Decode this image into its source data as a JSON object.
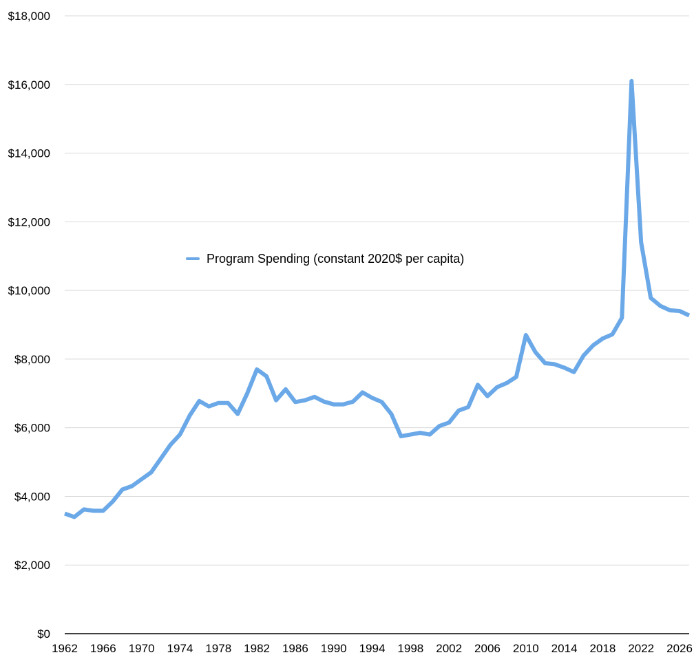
{
  "chart_data": {
    "type": "line",
    "title": "",
    "xlabel": "",
    "ylabel": "",
    "ylim": [
      0,
      18000
    ],
    "xlim": [
      1962,
      2027
    ],
    "yticks": [
      0,
      2000,
      4000,
      6000,
      8000,
      10000,
      12000,
      14000,
      16000,
      18000
    ],
    "ytick_labels": [
      "$0",
      "$2,000",
      "$4,000",
      "$6,000",
      "$8,000",
      "$10,000",
      "$12,000",
      "$14,000",
      "$16,000",
      "$18,000"
    ],
    "xticks": [
      1962,
      1966,
      1970,
      1974,
      1978,
      1982,
      1986,
      1990,
      1994,
      1998,
      2002,
      2006,
      2010,
      2014,
      2018,
      2022,
      2026
    ],
    "xtick_labels": [
      "1962",
      "1966",
      "1970",
      "1974",
      "1978",
      "1982",
      "1986",
      "1990",
      "1994",
      "1998",
      "2002",
      "2006",
      "2010",
      "2014",
      "2018",
      "2022",
      "2026"
    ],
    "grid": true,
    "legend": "center-left",
    "colors": {
      "series": "#6aa8e8",
      "grid": "#d9d9d9",
      "axis": "#000000"
    },
    "series": [
      {
        "name": "Program Spending (constant 2020$ per capita)",
        "x": [
          1962,
          1963,
          1964,
          1965,
          1966,
          1967,
          1968,
          1969,
          1970,
          1971,
          1972,
          1973,
          1974,
          1975,
          1976,
          1977,
          1978,
          1979,
          1980,
          1981,
          1982,
          1983,
          1984,
          1985,
          1986,
          1987,
          1988,
          1989,
          1990,
          1991,
          1992,
          1993,
          1994,
          1995,
          1996,
          1997,
          1998,
          1999,
          2000,
          2001,
          2002,
          2003,
          2004,
          2005,
          2006,
          2007,
          2008,
          2009,
          2010,
          2011,
          2012,
          2013,
          2014,
          2015,
          2016,
          2017,
          2018,
          2019,
          2020,
          2021,
          2022,
          2023,
          2024,
          2025,
          2026,
          2027
        ],
        "values": [
          3500,
          3400,
          3620,
          3580,
          3580,
          3850,
          4200,
          4300,
          4500,
          4700,
          5100,
          5500,
          5800,
          6350,
          6780,
          6620,
          6720,
          6720,
          6400,
          7000,
          7700,
          7500,
          6800,
          7120,
          6750,
          6800,
          6900,
          6760,
          6680,
          6680,
          6760,
          7030,
          6870,
          6750,
          6400,
          5750,
          5800,
          5850,
          5800,
          6050,
          6150,
          6500,
          6600,
          7250,
          6920,
          7180,
          7300,
          7480,
          8700,
          8200,
          7880,
          7850,
          7750,
          7620,
          8100,
          8400,
          8600,
          8720,
          9200,
          16100,
          11400,
          9780,
          9550,
          9420,
          9400,
          9270
        ]
      }
    ]
  }
}
